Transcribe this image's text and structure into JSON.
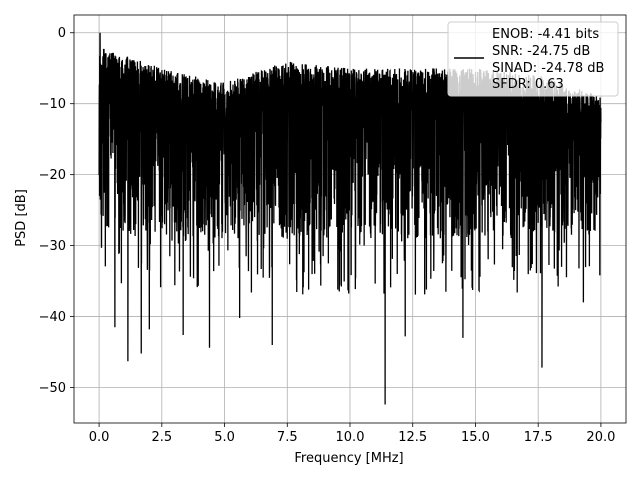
{
  "chart_data": {
    "type": "line",
    "xlabel": "Frequency [MHz]",
    "ylabel": "PSD [dB]",
    "xlim": [
      -1.0,
      21.0
    ],
    "ylim": [
      -55.0,
      2.5
    ],
    "xticks": [
      0.0,
      2.5,
      5.0,
      7.5,
      10.0,
      12.5,
      15.0,
      17.5,
      20.0
    ],
    "xtick_labels": [
      "0.0",
      "2.5",
      "5.0",
      "7.5",
      "10.0",
      "12.5",
      "15.0",
      "17.5",
      "20.0"
    ],
    "yticks": [
      0,
      -10,
      -20,
      -30,
      -40,
      -50
    ],
    "ytick_labels": [
      "0",
      "−10",
      "−20",
      "−30",
      "−40",
      "−50"
    ],
    "grid": true,
    "legend_position": "top-right",
    "series": [
      {
        "color": "#000000",
        "x_range": [
          0.0,
          20.0
        ],
        "n_points": 4096,
        "peak": {
          "x": 0.04,
          "y": 0.0
        },
        "envelope_upper": [
          [
            0.0,
            -2
          ],
          [
            2.5,
            -5
          ],
          [
            5.0,
            -7
          ],
          [
            7.5,
            -4
          ],
          [
            10.0,
            -5
          ],
          [
            12.5,
            -5
          ],
          [
            15.0,
            -5
          ],
          [
            17.5,
            -6
          ],
          [
            20.0,
            -9
          ]
        ],
        "envelope_lower_typical": [
          [
            0.0,
            -28
          ],
          [
            5.0,
            -29
          ],
          [
            10.0,
            -29
          ],
          [
            15.0,
            -29
          ],
          [
            20.0,
            -28
          ]
        ],
        "deep_minima": [
          [
            0.63,
            -41.5
          ],
          [
            1.15,
            -46.3
          ],
          [
            1.68,
            -45.2
          ],
          [
            2.0,
            -41.8
          ],
          [
            3.35,
            -42.6
          ],
          [
            4.4,
            -44.4
          ],
          [
            5.6,
            -40.2
          ],
          [
            6.9,
            -44.0
          ],
          [
            11.4,
            -52.4
          ],
          [
            12.2,
            -42.8
          ],
          [
            14.5,
            -43.0
          ],
          [
            17.65,
            -47.2
          ],
          [
            19.3,
            -38.0
          ]
        ]
      }
    ],
    "legend": {
      "entries": [
        "ENOB: -4.41 bits",
        "SNR: -24.75 dB",
        "SINAD: -24.78 dB",
        "SFDR: 0.63"
      ]
    }
  }
}
